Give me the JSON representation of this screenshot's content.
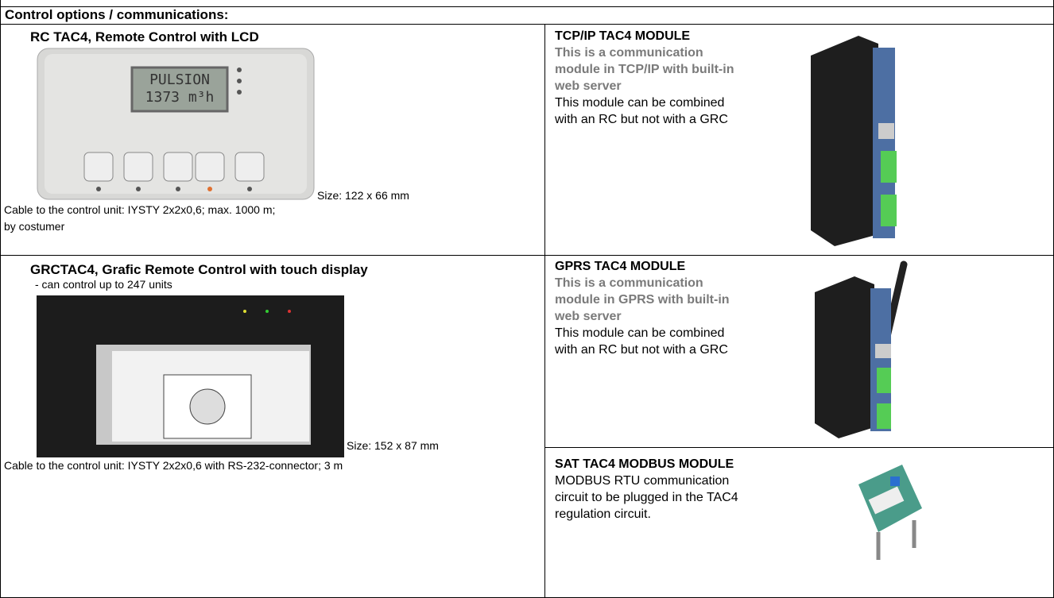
{
  "header": {
    "title": "Control options / communications:"
  },
  "rc": {
    "title": "RC TAC4, Remote Control with LCD",
    "lcd": [
      "PULSION",
      "1373 m³h"
    ],
    "size": "Size: 122 x 66 mm",
    "cable": [
      "Cable to the control unit: IYSTY 2x2x0,6;  max. 1000 m;",
      "by costumer"
    ]
  },
  "grc": {
    "title": "GRCTAC4, Grafic Remote Control with touch display",
    "note": "- can control up to 247 units",
    "size": "Size: 152 x 87 mm",
    "cable": "Cable to the control unit: IYSTY 2x2x0,6 with RS-232-connector; 3 m"
  },
  "tcp": {
    "title": "TCP/IP TAC4 MODULE",
    "highlight": [
      "This is a communication",
      "module in TCP/IP with built-in",
      "web server"
    ],
    "desc": [
      "This module can be combined",
      "with an RC but not with a GRC"
    ]
  },
  "gprs": {
    "title": "GPRS TAC4 MODULE",
    "highlight": [
      "This is a communication",
      "module in GPRS with built-in",
      "web server"
    ],
    "desc": [
      "This module can be combined",
      "with an RC but not with a GRC"
    ]
  },
  "sat": {
    "title": "SAT TAC4 MODBUS MODULE",
    "desc": [
      "MODBUS RTU communication",
      "circuit to be plugged in the TAC4",
      "regulation circuit."
    ]
  }
}
